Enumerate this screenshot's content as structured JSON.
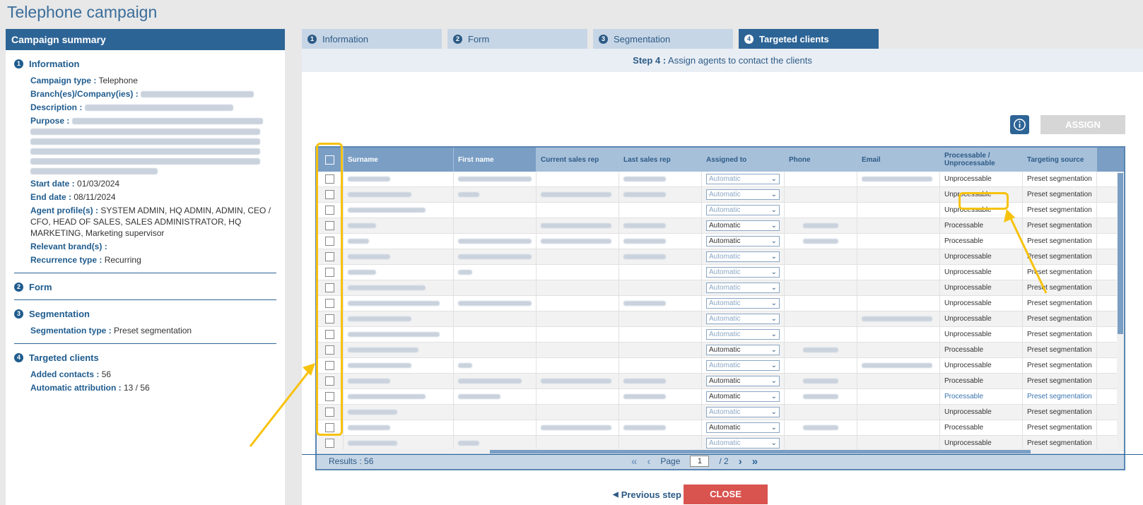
{
  "page_title": "Telephone campaign",
  "summary": {
    "header": "Campaign summary",
    "info": {
      "title": "Information",
      "num": "1",
      "campaign_type_label": "Campaign type :",
      "campaign_type": "Telephone",
      "branch_label": "Branch(es)/Company(ies) :",
      "description_label": "Description :",
      "purpose_label": "Purpose :",
      "start_date_label": "Start date :",
      "start_date": "01/03/2024",
      "end_date_label": "End date :",
      "end_date": "08/11/2024",
      "agent_profiles_label": "Agent profile(s) :",
      "agent_profiles": "SYSTEM ADMIN, HQ ADMIN, ADMIN, CEO / CFO, HEAD OF SALES, SALES ADMINISTRATOR, HQ MARKETING, Marketing supervisor",
      "brands_label": "Relevant brand(s) :",
      "recurrence_label": "Recurrence type :",
      "recurrence": "Recurring"
    },
    "form": {
      "title": "Form",
      "num": "2"
    },
    "segmentation": {
      "title": "Segmentation",
      "num": "3",
      "type_label": "Segmentation type :",
      "type": "Preset segmentation"
    },
    "targeted": {
      "title": "Targeted clients",
      "num": "4",
      "added_label": "Added contacts :",
      "added": "56",
      "auto_label": "Automatic attribution :",
      "auto": "13 / 56"
    }
  },
  "tabs": [
    {
      "num": "1",
      "label": "Information"
    },
    {
      "num": "2",
      "label": "Form"
    },
    {
      "num": "3",
      "label": "Segmentation"
    },
    {
      "num": "4",
      "label": "Targeted clients"
    }
  ],
  "step": {
    "prefix": "Step 4 :",
    "text": "Assign agents to contact the clients"
  },
  "assign_label": "ASSIGN",
  "columns": {
    "surname": "Surname",
    "first_name": "First name",
    "current_rep": "Current sales rep",
    "last_rep": "Last sales rep",
    "assigned_to": "Assigned to",
    "phone": "Phone",
    "email": "Email",
    "processable": "Processable / Unprocessable",
    "source": "Targeting source"
  },
  "select_value": "Automatic",
  "rows": [
    {
      "status": "Unprocessable",
      "source": "Preset segmentation",
      "active": false
    },
    {
      "status": "Unprocessable",
      "source": "Preset segmentation",
      "active": false
    },
    {
      "status": "Unprocessable",
      "source": "Preset segmentation",
      "active": false
    },
    {
      "status": "Processable",
      "source": "Preset segmentation",
      "active": true
    },
    {
      "status": "Processable",
      "source": "Preset segmentation",
      "active": true
    },
    {
      "status": "Unprocessable",
      "source": "Preset segmentation",
      "active": false
    },
    {
      "status": "Unprocessable",
      "source": "Preset segmentation",
      "active": false
    },
    {
      "status": "Unprocessable",
      "source": "Preset segmentation",
      "active": false
    },
    {
      "status": "Unprocessable",
      "source": "Preset segmentation",
      "active": false
    },
    {
      "status": "Unprocessable",
      "source": "Preset segmentation",
      "active": false
    },
    {
      "status": "Unprocessable",
      "source": "Preset segmentation",
      "active": false
    },
    {
      "status": "Processable",
      "source": "Preset segmentation",
      "active": true
    },
    {
      "status": "Unprocessable",
      "source": "Preset segmentation",
      "active": false
    },
    {
      "status": "Processable",
      "source": "Preset segmentation",
      "active": true
    },
    {
      "status": "Processable",
      "source": "Preset segmentation",
      "active": true
    },
    {
      "status": "Unprocessable",
      "source": "Preset segmentation",
      "active": false
    },
    {
      "status": "Processable",
      "source": "Preset segmentation",
      "active": true
    },
    {
      "status": "Unprocessable",
      "source": "Preset segmentation",
      "active": false
    }
  ],
  "footer": {
    "results": "Results : 56",
    "page_label": "Page",
    "page_value": "1",
    "page_total": "/ 2"
  },
  "previous_step": "Previous step",
  "close_label": "CLOSE"
}
